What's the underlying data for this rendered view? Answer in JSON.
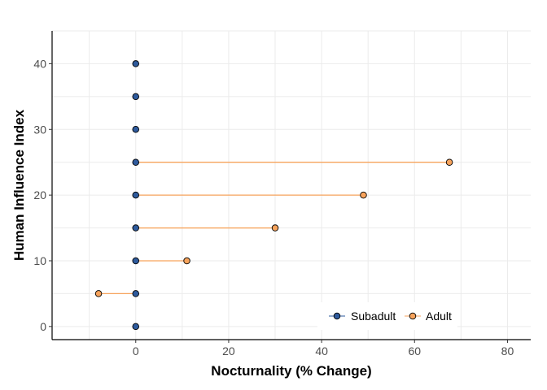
{
  "chart_data": {
    "type": "scatter",
    "title": "",
    "xlabel": "Nocturnality (% Change)",
    "ylabel": "Human Influence Index",
    "xlim": [
      -18,
      85
    ],
    "ylim": [
      -2,
      45
    ],
    "x_ticks": [
      0,
      20,
      40,
      60,
      80
    ],
    "y_ticks": [
      0,
      10,
      20,
      30,
      40
    ],
    "grid": true,
    "legend_position": "bottom-right",
    "series": [
      {
        "name": "Subadult",
        "color": "#2e5a9c",
        "points": [
          {
            "x": 0,
            "y": 0
          },
          {
            "x": 0,
            "y": 5
          },
          {
            "x": 0,
            "y": 10
          },
          {
            "x": 0,
            "y": 15
          },
          {
            "x": 0,
            "y": 20
          },
          {
            "x": 0,
            "y": 25
          },
          {
            "x": 0,
            "y": 30
          },
          {
            "x": 0,
            "y": 35
          },
          {
            "x": 0,
            "y": 40
          }
        ]
      },
      {
        "name": "Adult",
        "color": "#f7a35c",
        "points": [
          {
            "x": -8,
            "y": 5
          },
          {
            "x": 11,
            "y": 10
          },
          {
            "x": 30,
            "y": 15
          },
          {
            "x": 49,
            "y": 20
          },
          {
            "x": 67.5,
            "y": 25
          }
        ]
      }
    ],
    "segments": [
      {
        "y": 5,
        "x_from": -8,
        "x_to": 0
      },
      {
        "y": 10,
        "x_from": 0,
        "x_to": 11
      },
      {
        "y": 15,
        "x_from": 0,
        "x_to": 30
      },
      {
        "y": 20,
        "x_from": 0,
        "x_to": 49
      },
      {
        "y": 25,
        "x_from": 0,
        "x_to": 67.5
      }
    ],
    "segment_color": "#f7a35c"
  }
}
